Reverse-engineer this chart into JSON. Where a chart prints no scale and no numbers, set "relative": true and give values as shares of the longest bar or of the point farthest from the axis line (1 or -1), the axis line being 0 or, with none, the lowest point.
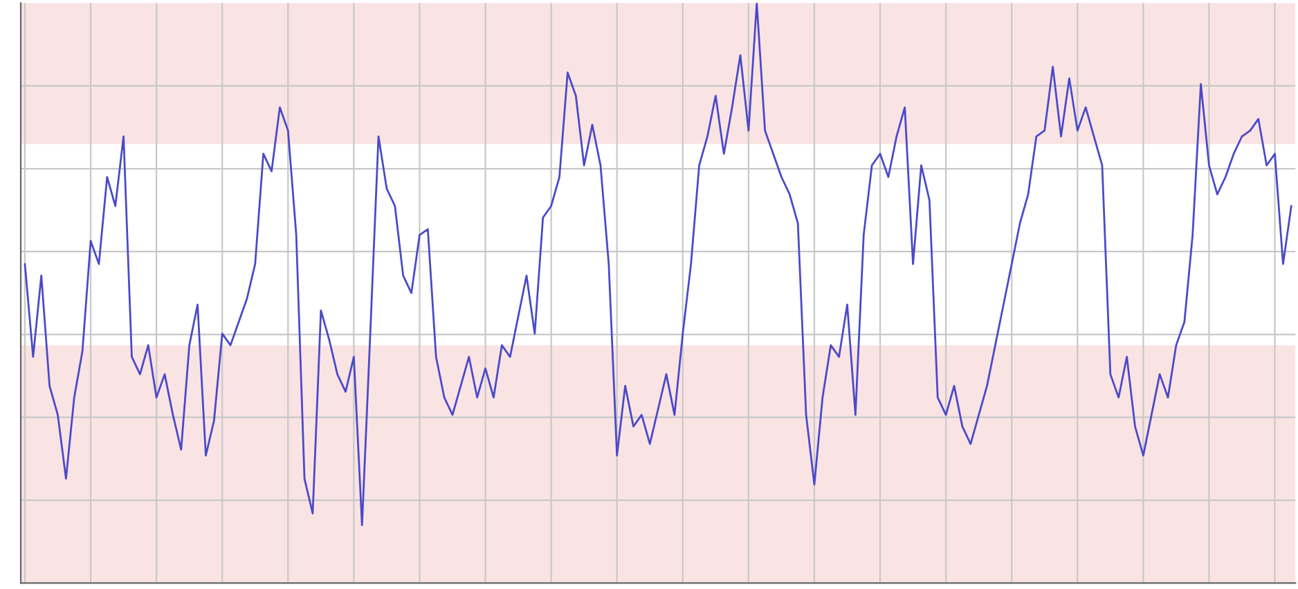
{
  "chart_data": {
    "type": "line",
    "relative": true,
    "grid": true,
    "tick_labels": false,
    "categories": [
      null,
      null,
      null,
      null,
      null,
      null,
      null,
      null,
      null,
      null,
      null,
      null,
      null,
      null,
      null,
      null,
      null,
      null,
      null,
      null,
      null,
      null,
      null,
      null,
      null,
      null,
      null,
      null,
      null,
      null,
      null,
      null,
      null,
      null,
      null,
      null,
      null,
      null,
      null,
      null,
      null,
      null,
      null,
      null,
      null,
      null,
      null,
      null,
      null,
      null,
      null,
      null,
      null,
      null,
      null,
      null,
      null,
      null,
      null,
      null,
      null,
      null,
      null,
      null,
      null,
      null,
      null,
      null,
      null,
      null,
      null,
      null,
      null,
      null,
      null,
      null,
      null,
      null,
      null,
      null,
      null,
      null,
      null,
      null,
      null,
      null,
      null,
      null,
      null,
      null,
      null,
      null,
      null,
      null,
      null,
      null,
      null,
      null,
      null,
      null,
      null,
      null,
      null,
      null,
      null,
      null,
      null,
      null,
      null,
      null,
      null,
      null,
      null,
      null,
      null,
      null,
      null,
      null,
      null,
      null,
      null,
      null,
      null,
      null,
      null,
      null,
      null,
      null,
      null,
      null,
      null,
      null,
      null,
      null,
      null,
      null,
      null,
      null,
      null,
      null,
      null,
      null,
      null,
      null,
      null,
      null,
      null,
      null,
      null,
      null,
      null,
      null,
      null,
      null,
      null
    ],
    "series": [
      {
        "color": "#4a4ac8",
        "values": [
          0.55,
          0.39,
          0.53,
          0.34,
          0.29,
          0.18,
          0.32,
          0.4,
          0.59,
          0.55,
          0.7,
          0.65,
          0.77,
          0.39,
          0.36,
          0.41,
          0.32,
          0.36,
          0.29,
          0.23,
          0.41,
          0.48,
          0.22,
          0.28,
          0.43,
          0.41,
          0.45,
          0.49,
          0.55,
          0.74,
          0.71,
          0.82,
          0.78,
          0.6,
          0.18,
          0.12,
          0.47,
          0.42,
          0.36,
          0.33,
          0.39,
          0.1,
          0.43,
          0.77,
          0.68,
          0.65,
          0.53,
          0.5,
          0.6,
          0.61,
          0.39,
          0.32,
          0.29,
          0.34,
          0.39,
          0.32,
          0.37,
          0.32,
          0.41,
          0.39,
          0.46,
          0.53,
          0.43,
          0.63,
          0.65,
          0.7,
          0.88,
          0.84,
          0.72,
          0.79,
          0.72,
          0.55,
          0.22,
          0.34,
          0.27,
          0.29,
          0.24,
          0.3,
          0.36,
          0.29,
          0.43,
          0.55,
          0.72,
          0.77,
          0.84,
          0.74,
          0.82,
          0.91,
          0.78,
          1.0,
          0.78,
          0.74,
          0.7,
          0.67,
          0.62,
          0.29,
          0.17,
          0.32,
          0.41,
          0.39,
          0.48,
          0.29,
          0.6,
          0.72,
          0.74,
          0.7,
          0.77,
          0.82,
          0.55,
          0.72,
          0.66,
          0.32,
          0.29,
          0.34,
          0.27,
          0.24,
          0.29,
          0.34,
          0.41,
          0.48,
          0.55,
          0.62,
          0.67,
          0.77,
          0.78,
          0.89,
          0.77,
          0.87,
          0.78,
          0.82,
          0.77,
          0.72,
          0.36,
          0.32,
          0.39,
          0.27,
          0.22,
          0.29,
          0.36,
          0.32,
          0.41,
          0.45,
          0.6,
          0.86,
          0.72,
          0.67,
          0.7,
          0.74,
          0.77,
          0.78,
          0.8,
          0.72,
          0.74,
          0.55,
          0.65
        ]
      }
    ]
  }
}
